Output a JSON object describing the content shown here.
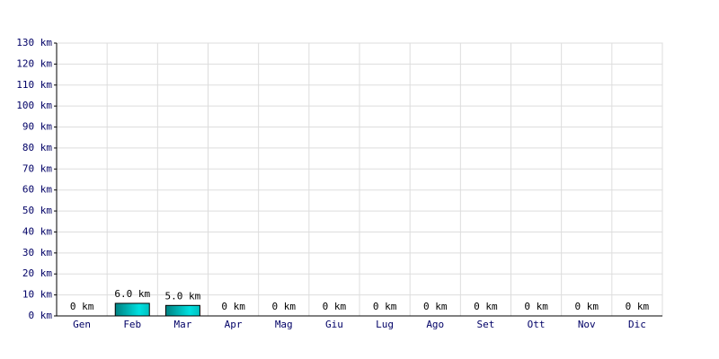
{
  "chart_data": {
    "type": "bar",
    "categories": [
      "Gen",
      "Feb",
      "Mar",
      "Apr",
      "Mag",
      "Giu",
      "Lug",
      "Ago",
      "Set",
      "Ott",
      "Nov",
      "Dic"
    ],
    "values": [
      0,
      6,
      5,
      0,
      0,
      0,
      0,
      0,
      0,
      0,
      0,
      0
    ],
    "value_labels": [
      "0 km",
      "6.0 km",
      "5.0 km",
      "0 km",
      "0 km",
      "0 km",
      "0 km",
      "0 km",
      "0 km",
      "0 km",
      "0 km",
      "0 km"
    ],
    "color": "#00e0e0",
    "ylim": [
      0,
      130
    ],
    "yticks": [
      {
        "value": 0,
        "label": "0 km"
      },
      {
        "value": 10,
        "label": "10 km"
      },
      {
        "value": 20,
        "label": "20 km"
      },
      {
        "value": 30,
        "label": "30 km"
      },
      {
        "value": 40,
        "label": "40 km"
      },
      {
        "value": 50,
        "label": "50 km"
      },
      {
        "value": 60,
        "label": "60 km"
      },
      {
        "value": 70,
        "label": "70 km"
      },
      {
        "value": 80,
        "label": "80 km"
      },
      {
        "value": 90,
        "label": "90 km"
      },
      {
        "value": 100,
        "label": "100 km"
      },
      {
        "value": 110,
        "label": "110 km"
      },
      {
        "value": 120,
        "label": "120 km"
      },
      {
        "value": 130,
        "label": "130 km"
      }
    ],
    "grid": true
  }
}
